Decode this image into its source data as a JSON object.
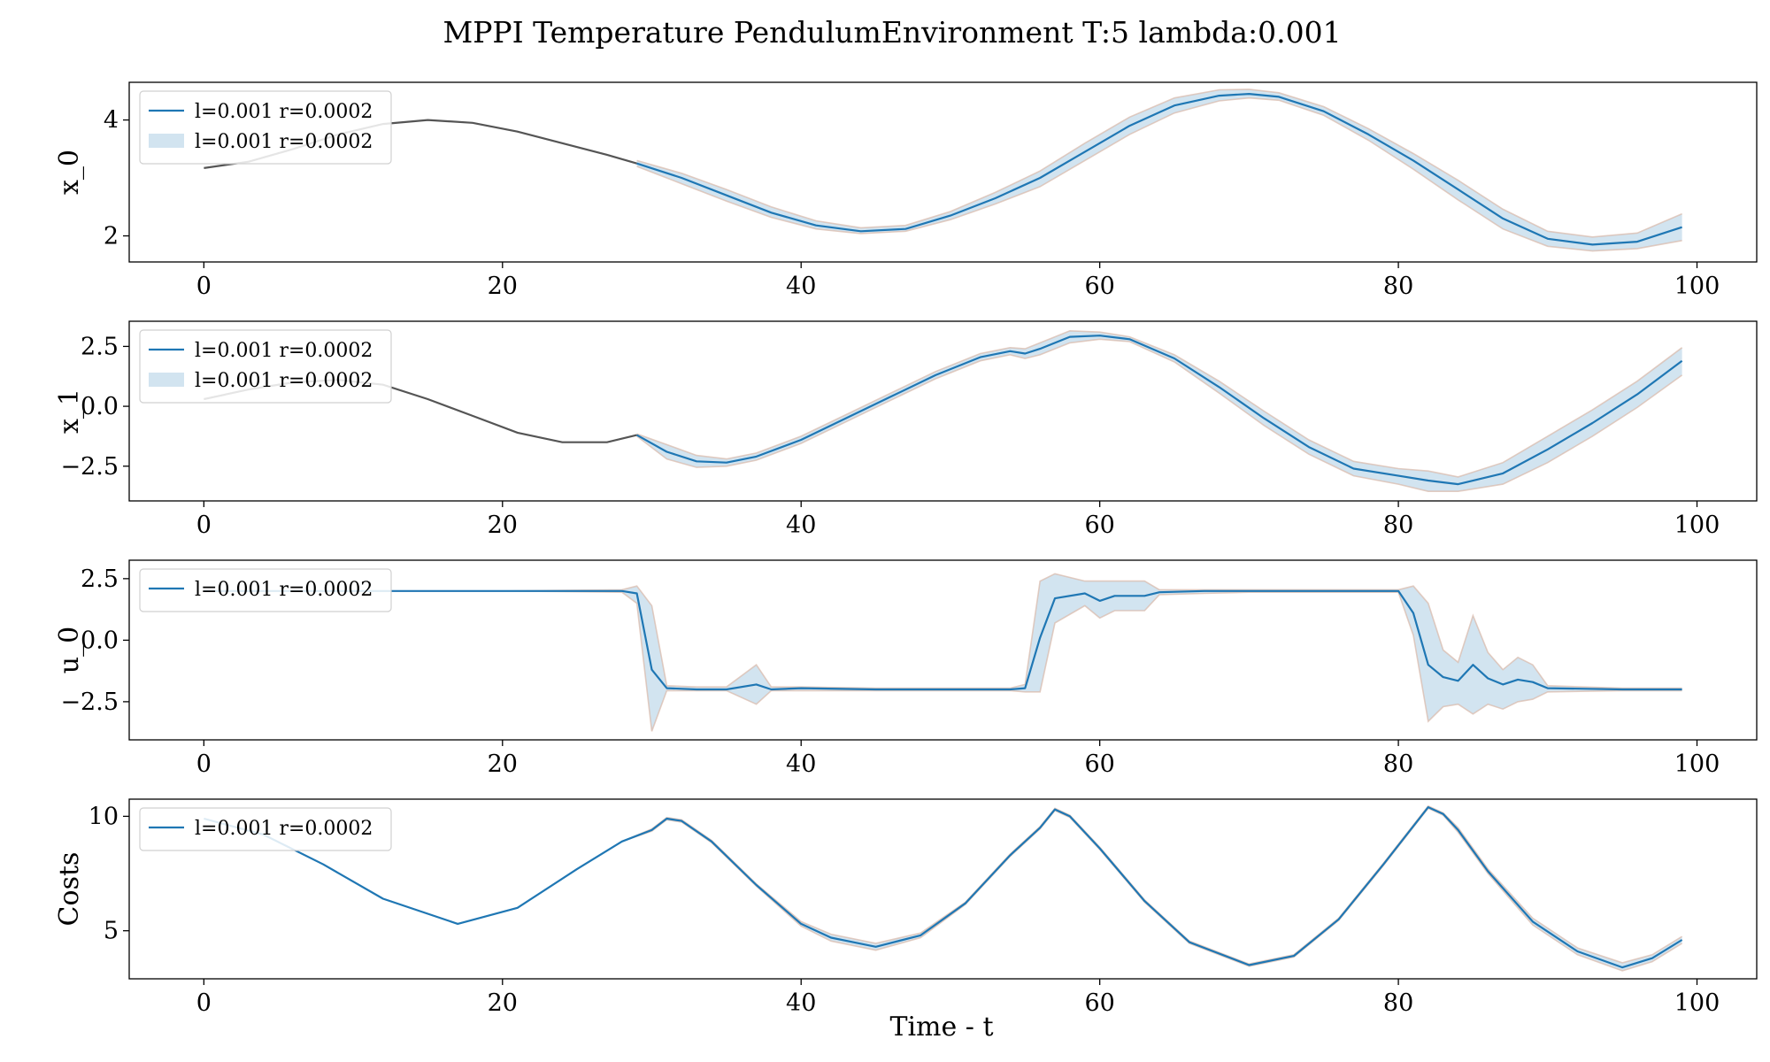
{
  "figure": {
    "title": "MPPI Temperature PendulumEnvironment T:5 lambda:0.001",
    "xlabel": "Time - t"
  },
  "colors": {
    "mean_line": "#1f77b4",
    "band_fill": "#1f77b4",
    "prefix_line": "#555555",
    "sample_line": "#d8b8a8"
  },
  "chart_data": [
    {
      "type": "line",
      "ylabel": "x_0",
      "xlim": [
        -5,
        104
      ],
      "ylim": [
        1.55,
        4.65
      ],
      "xticks": [
        0,
        20,
        40,
        60,
        80,
        100
      ],
      "yticks": [
        2,
        4
      ],
      "ytick_labels": [
        "2",
        "4"
      ],
      "legend": {
        "placement": "top-left",
        "entries": [
          "l=0.001 r=0.0002",
          "l=0.001 r=0.0002"
        ]
      },
      "prefix": {
        "x": [
          0,
          3,
          6,
          9,
          12,
          15,
          18,
          21,
          24,
          27,
          29
        ],
        "y": [
          3.17,
          3.28,
          3.5,
          3.75,
          3.93,
          4.0,
          3.95,
          3.8,
          3.6,
          3.4,
          3.25
        ]
      },
      "series": [
        {
          "name": "l=0.001 r=0.0002",
          "x": [
            29,
            32,
            35,
            38,
            41,
            44,
            47,
            50,
            53,
            56,
            59,
            62,
            65,
            68,
            70,
            72,
            75,
            78,
            81,
            84,
            87,
            90,
            93,
            96,
            99
          ],
          "y": [
            3.25,
            3.0,
            2.7,
            2.4,
            2.18,
            2.08,
            2.12,
            2.35,
            2.65,
            3.0,
            3.45,
            3.9,
            4.25,
            4.42,
            4.45,
            4.4,
            4.15,
            3.75,
            3.3,
            2.8,
            2.3,
            1.95,
            1.85,
            1.9,
            2.15
          ],
          "band_lower": [
            3.2,
            2.9,
            2.6,
            2.32,
            2.12,
            2.04,
            2.08,
            2.28,
            2.55,
            2.85,
            3.3,
            3.75,
            4.12,
            4.33,
            4.38,
            4.34,
            4.08,
            3.65,
            3.15,
            2.62,
            2.12,
            1.82,
            1.74,
            1.78,
            1.92
          ],
          "band_upper": [
            3.3,
            3.08,
            2.8,
            2.5,
            2.26,
            2.14,
            2.18,
            2.42,
            2.75,
            3.12,
            3.6,
            4.05,
            4.38,
            4.52,
            4.53,
            4.47,
            4.23,
            3.85,
            3.42,
            2.96,
            2.46,
            2.08,
            1.98,
            2.05,
            2.38
          ]
        }
      ]
    },
    {
      "type": "line",
      "ylabel": "x_1",
      "xlim": [
        -5,
        104
      ],
      "ylim": [
        -3.95,
        3.55
      ],
      "xticks": [
        0,
        20,
        40,
        60,
        80,
        100
      ],
      "yticks": [
        2.5,
        0.0,
        -2.5
      ],
      "ytick_labels": [
        "2.5",
        "0.0",
        "−2.5"
      ],
      "legend": {
        "placement": "top-left",
        "entries": [
          "l=0.001 r=0.0002",
          "l=0.001 r=0.0002"
        ]
      },
      "prefix": {
        "x": [
          0,
          3,
          6,
          9,
          12,
          15,
          18,
          21,
          24,
          27,
          29
        ],
        "y": [
          0.3,
          0.7,
          1.0,
          1.1,
          0.9,
          0.3,
          -0.4,
          -1.1,
          -1.5,
          -1.5,
          -1.2
        ]
      },
      "series": [
        {
          "name": "l=0.001 r=0.0002",
          "x": [
            29,
            31,
            33,
            35,
            37,
            40,
            43,
            46,
            49,
            52,
            54,
            55,
            56,
            58,
            60,
            62,
            65,
            68,
            71,
            74,
            77,
            80,
            82,
            84,
            87,
            90,
            93,
            96,
            99
          ],
          "y": [
            -1.2,
            -1.9,
            -2.3,
            -2.35,
            -2.1,
            -1.4,
            -0.5,
            0.4,
            1.3,
            2.05,
            2.3,
            2.2,
            2.4,
            2.9,
            2.95,
            2.8,
            2.0,
            0.8,
            -0.5,
            -1.7,
            -2.6,
            -2.9,
            -3.1,
            -3.25,
            -2.8,
            -1.8,
            -0.7,
            0.5,
            1.9
          ],
          "band_lower": [
            -1.25,
            -2.2,
            -2.55,
            -2.5,
            -2.25,
            -1.55,
            -0.65,
            0.25,
            1.15,
            1.9,
            2.15,
            2.0,
            2.15,
            2.65,
            2.8,
            2.7,
            1.85,
            0.55,
            -0.8,
            -2.0,
            -2.9,
            -3.25,
            -3.55,
            -3.55,
            -3.25,
            -2.35,
            -1.25,
            -0.05,
            1.3
          ],
          "band_upper": [
            -1.15,
            -1.6,
            -2.05,
            -2.2,
            -1.95,
            -1.25,
            -0.35,
            0.55,
            1.45,
            2.2,
            2.45,
            2.4,
            2.65,
            3.15,
            3.1,
            2.9,
            2.15,
            1.05,
            -0.2,
            -1.4,
            -2.3,
            -2.6,
            -2.7,
            -2.95,
            -2.35,
            -1.25,
            -0.15,
            1.05,
            2.45
          ]
        }
      ]
    },
    {
      "type": "line",
      "ylabel": "u_0",
      "xlim": [
        -5,
        104
      ],
      "ylim": [
        -4.05,
        3.25
      ],
      "xticks": [
        0,
        20,
        40,
        60,
        80,
        100
      ],
      "yticks": [
        2.5,
        0.0,
        -2.5
      ],
      "ytick_labels": [
        "2.5",
        "0.0",
        "−2.5"
      ],
      "legend": {
        "placement": "top-left",
        "entries": [
          "l=0.001 r=0.0002"
        ]
      },
      "series": [
        {
          "name": "l=0.001 r=0.0002",
          "x": [
            0,
            10,
            20,
            28,
            29,
            30,
            31,
            33,
            35,
            37,
            38,
            40,
            45,
            50,
            54,
            55,
            56,
            57,
            59,
            60,
            61,
            63,
            64,
            67,
            70,
            75,
            80,
            81,
            82,
            83,
            84,
            85,
            86,
            87,
            88,
            89,
            90,
            95,
            99
          ],
          "y": [
            2.0,
            2.0,
            2.0,
            2.0,
            1.9,
            -1.2,
            -1.95,
            -2.0,
            -2.0,
            -1.8,
            -2.0,
            -1.95,
            -2.0,
            -2.0,
            -2.0,
            -1.95,
            0.1,
            1.7,
            1.9,
            1.6,
            1.8,
            1.8,
            1.95,
            2.0,
            2.0,
            2.0,
            2.0,
            1.1,
            -1.0,
            -1.5,
            -1.65,
            -1.0,
            -1.55,
            -1.8,
            -1.6,
            -1.7,
            -1.95,
            -2.0,
            -2.0
          ],
          "band_lower": [
            2.0,
            2.0,
            2.0,
            1.95,
            1.5,
            -3.7,
            -2.05,
            -2.05,
            -2.05,
            -2.6,
            -2.05,
            -2.05,
            -2.05,
            -2.05,
            -2.05,
            -2.1,
            -2.1,
            0.7,
            1.4,
            0.9,
            1.2,
            1.2,
            1.85,
            1.9,
            1.95,
            1.95,
            1.95,
            0.2,
            -3.3,
            -2.7,
            -2.6,
            -3.0,
            -2.6,
            -2.8,
            -2.5,
            -2.4,
            -2.1,
            -2.05,
            -2.05
          ],
          "band_upper": [
            2.0,
            2.0,
            2.0,
            2.05,
            2.2,
            1.4,
            -1.85,
            -1.9,
            -1.9,
            -1.0,
            -1.9,
            -1.9,
            -1.95,
            -1.95,
            -1.95,
            -1.8,
            2.4,
            2.7,
            2.4,
            2.4,
            2.4,
            2.4,
            2.05,
            2.05,
            2.05,
            2.05,
            2.05,
            2.2,
            1.5,
            -0.4,
            -0.9,
            1.0,
            -0.5,
            -1.2,
            -0.7,
            -1.0,
            -1.85,
            -1.95,
            -1.95
          ]
        }
      ]
    },
    {
      "type": "line",
      "ylabel": "Costs",
      "xlim": [
        -5,
        104
      ],
      "ylim": [
        2.9,
        10.75
      ],
      "xticks": [
        0,
        20,
        40,
        60,
        80,
        100
      ],
      "yticks": [
        10,
        5
      ],
      "ytick_labels": [
        "10",
        "5"
      ],
      "legend": {
        "placement": "top-left",
        "entries": [
          "l=0.001 r=0.0002"
        ]
      },
      "series": [
        {
          "name": "l=0.001 r=0.0002",
          "x": [
            0,
            4,
            8,
            12,
            17,
            21,
            25,
            28,
            30,
            31,
            32,
            34,
            37,
            40,
            42,
            45,
            48,
            51,
            54,
            56,
            57,
            58,
            60,
            63,
            66,
            70,
            73,
            76,
            79,
            82,
            83,
            84,
            86,
            89,
            92,
            95,
            97,
            99
          ],
          "y": [
            9.9,
            9.2,
            7.9,
            6.4,
            5.3,
            6.0,
            7.7,
            8.9,
            9.4,
            9.9,
            9.8,
            8.9,
            7.0,
            5.3,
            4.7,
            4.3,
            4.8,
            6.2,
            8.3,
            9.5,
            10.3,
            10.0,
            8.6,
            6.3,
            4.5,
            3.5,
            3.9,
            5.5,
            7.9,
            10.4,
            10.1,
            9.4,
            7.6,
            5.4,
            4.1,
            3.4,
            3.8,
            4.6
          ],
          "band_lower": [
            9.9,
            9.2,
            7.9,
            6.4,
            5.3,
            6.0,
            7.7,
            8.9,
            9.35,
            9.85,
            9.75,
            8.85,
            6.95,
            5.2,
            4.55,
            4.15,
            4.7,
            6.15,
            8.25,
            9.45,
            10.25,
            9.95,
            8.55,
            6.25,
            4.45,
            3.45,
            3.85,
            5.45,
            7.85,
            10.35,
            10.05,
            9.3,
            7.5,
            5.25,
            3.95,
            3.25,
            3.65,
            4.45
          ],
          "band_upper": [
            9.9,
            9.2,
            7.9,
            6.4,
            5.3,
            6.0,
            7.7,
            8.9,
            9.45,
            9.95,
            9.85,
            8.95,
            7.05,
            5.4,
            4.85,
            4.45,
            4.9,
            6.25,
            8.35,
            9.55,
            10.35,
            10.05,
            8.65,
            6.35,
            4.55,
            3.55,
            3.95,
            5.55,
            7.95,
            10.45,
            10.15,
            9.5,
            7.7,
            5.55,
            4.25,
            3.6,
            3.95,
            4.75
          ]
        }
      ]
    }
  ]
}
